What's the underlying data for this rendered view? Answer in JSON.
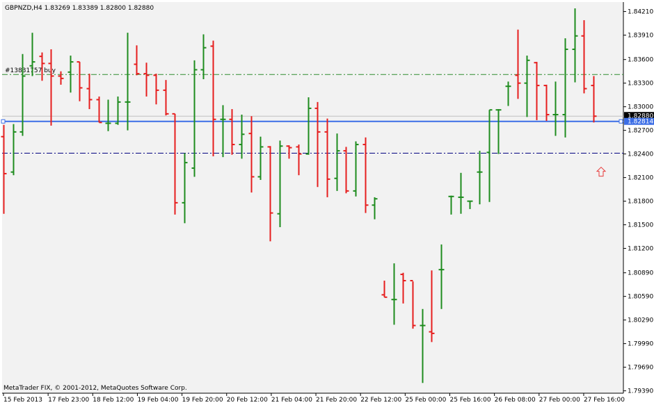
{
  "header": {
    "symbol_info": "GBPNZD,H4  1.83269 1.83389 1.82800 1.82880"
  },
  "footer": {
    "copyright": "MetaTrader FIX, © 2001-2012, MetaQuotes Software Corp."
  },
  "colors": {
    "background": "#f2f2f2",
    "bull": "#1e8c1e",
    "bear": "#e61e1e",
    "current_price_line": "#c0c0c0",
    "blue_line": "#3c6ee6",
    "green_dash": "#2e8b2e",
    "navy_dash": "#000080",
    "arrow": "#e83c3c"
  },
  "chart_data": {
    "type": "ohlc",
    "title": "GBPNZD,H4",
    "ohlc_header": {
      "open": 1.83269,
      "high": 1.83389,
      "low": 1.828,
      "close": 1.8288
    },
    "y_ticks": [
      "1.84210",
      "1.83910",
      "1.83600",
      "1.83300",
      "1.83000",
      "1.82700",
      "1.82400",
      "1.82100",
      "1.81800",
      "1.81500",
      "1.81200",
      "1.80890",
      "1.80590",
      "1.80290",
      "1.79990",
      "1.79690",
      "1.79390"
    ],
    "x_ticks": [
      "15 Feb 2013",
      "17 Feb 23:00",
      "18 Feb 12:00",
      "19 Feb 04:00",
      "19 Feb 20:00",
      "20 Feb 12:00",
      "21 Feb 04:00",
      "21 Feb 20:00",
      "22 Feb 12:00",
      "25 Feb 00:00",
      "25 Feb 16:00",
      "26 Feb 08:00",
      "27 Feb 00:00",
      "27 Feb 16:00"
    ],
    "ylim": [
      1.7936,
      1.8433
    ],
    "current_price": {
      "value": 1.8288,
      "label": "1.82880"
    },
    "blue_line": {
      "value": 1.82814,
      "label": "1.82814"
    },
    "order_line": {
      "value": 1.8341,
      "label": "#13831757 buy"
    },
    "dashdot_line": {
      "value": 1.8241
    },
    "arrow_bar_index": 63,
    "arrow_price": 1.8217,
    "bars": [
      {
        "o": 1.8262,
        "h": 1.8277,
        "l": 1.8164,
        "c": 1.8215
      },
      {
        "o": 1.8217,
        "h": 1.8278,
        "l": 1.8213,
        "c": 1.8268
      },
      {
        "o": 1.8268,
        "h": 1.8367,
        "l": 1.8263,
        "c": 1.8339
      },
      {
        "o": 1.8352,
        "h": 1.8394,
        "l": 1.8339,
        "c": 1.8357
      },
      {
        "o": 1.8364,
        "h": 1.8369,
        "l": 1.8333,
        "c": 1.8355
      },
      {
        "o": 1.8355,
        "h": 1.8373,
        "l": 1.8276,
        "c": 1.8339
      },
      {
        "o": 1.8339,
        "h": 1.8345,
        "l": 1.8328,
        "c": 1.8336
      },
      {
        "o": 1.8344,
        "h": 1.8365,
        "l": 1.8318,
        "c": 1.8357
      },
      {
        "o": 1.8357,
        "h": 1.8357,
        "l": 1.8307,
        "c": 1.8324
      },
      {
        "o": 1.8323,
        "h": 1.8342,
        "l": 1.8297,
        "c": 1.8309
      },
      {
        "o": 1.8309,
        "h": 1.8313,
        "l": 1.828,
        "c": 1.828
      },
      {
        "o": 1.8279,
        "h": 1.8309,
        "l": 1.8269,
        "c": 1.8279
      },
      {
        "o": 1.8279,
        "h": 1.8313,
        "l": 1.8277,
        "c": 1.8306
      },
      {
        "o": 1.8306,
        "h": 1.8394,
        "l": 1.827,
        "c": 1.8306
      },
      {
        "o": 1.8354,
        "h": 1.8378,
        "l": 1.834,
        "c": 1.8342
      },
      {
        "o": 1.8342,
        "h": 1.8356,
        "l": 1.8313,
        "c": 1.834
      },
      {
        "o": 1.834,
        "h": 1.8342,
        "l": 1.8303,
        "c": 1.8321
      },
      {
        "o": 1.8321,
        "h": 1.8334,
        "l": 1.8289,
        "c": 1.8291
      },
      {
        "o": 1.8291,
        "h": 1.8291,
        "l": 1.8163,
        "c": 1.8178
      },
      {
        "o": 1.8178,
        "h": 1.8241,
        "l": 1.8152,
        "c": 1.8229
      },
      {
        "o": 1.8222,
        "h": 1.8359,
        "l": 1.8211,
        "c": 1.8347
      },
      {
        "o": 1.8347,
        "h": 1.8392,
        "l": 1.8335,
        "c": 1.8375
      },
      {
        "o": 1.8377,
        "h": 1.8384,
        "l": 1.8237,
        "c": 1.8284
      },
      {
        "o": 1.8284,
        "h": 1.8302,
        "l": 1.8236,
        "c": 1.8284
      },
      {
        "o": 1.8284,
        "h": 1.8297,
        "l": 1.8239,
        "c": 1.8252
      },
      {
        "o": 1.8252,
        "h": 1.829,
        "l": 1.8234,
        "c": 1.8265
      },
      {
        "o": 1.8266,
        "h": 1.8288,
        "l": 1.8191,
        "c": 1.8211
      },
      {
        "o": 1.8211,
        "h": 1.8262,
        "l": 1.8207,
        "c": 1.8249
      },
      {
        "o": 1.8249,
        "h": 1.825,
        "l": 1.8129,
        "c": 1.8165
      },
      {
        "o": 1.8164,
        "h": 1.8257,
        "l": 1.8147,
        "c": 1.825
      },
      {
        "o": 1.825,
        "h": 1.8251,
        "l": 1.8234,
        "c": 1.8248
      },
      {
        "o": 1.8249,
        "h": 1.8252,
        "l": 1.8213,
        "c": 1.824
      },
      {
        "o": 1.824,
        "h": 1.8312,
        "l": 1.8239,
        "c": 1.8298
      },
      {
        "o": 1.8298,
        "h": 1.8306,
        "l": 1.8198,
        "c": 1.8268
      },
      {
        "o": 1.8268,
        "h": 1.8285,
        "l": 1.8185,
        "c": 1.8208
      },
      {
        "o": 1.8209,
        "h": 1.8266,
        "l": 1.8193,
        "c": 1.8244
      },
      {
        "o": 1.8244,
        "h": 1.8249,
        "l": 1.819,
        "c": 1.8193
      },
      {
        "o": 1.8193,
        "h": 1.8256,
        "l": 1.8186,
        "c": 1.8252
      },
      {
        "o": 1.8252,
        "h": 1.8261,
        "l": 1.8165,
        "c": 1.8175
      },
      {
        "o": 1.8175,
        "h": 1.8185,
        "l": 1.8157,
        "c": 1.8183
      },
      {
        "o": 1.8061,
        "h": 1.8079,
        "l": 1.8058,
        "c": 1.8058
      },
      {
        "o": 1.8055,
        "h": 1.8101,
        "l": 1.8023,
        "c": 1.8055
      },
      {
        "o": 1.8087,
        "h": 1.8089,
        "l": 1.805,
        "c": 1.8079
      },
      {
        "o": 1.8079,
        "h": 1.8078,
        "l": 1.8018,
        "c": 1.8022
      },
      {
        "o": 1.8022,
        "h": 1.8043,
        "l": 1.7949,
        "c": 1.8022
      },
      {
        "o": 1.8014,
        "h": 1.8092,
        "l": 1.8001,
        "c": 1.8012
      },
      {
        "o": 1.8093,
        "h": 1.8125,
        "l": 1.8043,
        "c": 1.8093
      },
      {
        "o": 1.8186,
        "h": 1.8187,
        "l": 1.8163,
        "c": 1.8186
      },
      {
        "o": 1.8185,
        "h": 1.8216,
        "l": 1.8164,
        "c": 1.8185
      },
      {
        "o": 1.818,
        "h": 1.818,
        "l": 1.817,
        "c": 1.818
      },
      {
        "o": 1.8217,
        "h": 1.8244,
        "l": 1.8176,
        "c": 1.8217
      },
      {
        "o": 1.8242,
        "h": 1.8296,
        "l": 1.8179,
        "c": 1.8296
      },
      {
        "o": 1.8296,
        "h": 1.8297,
        "l": 1.824,
        "c": 1.8296
      },
      {
        "o": 1.8326,
        "h": 1.8332,
        "l": 1.8301,
        "c": 1.8326
      },
      {
        "o": 1.834,
        "h": 1.8398,
        "l": 1.831,
        "c": 1.833
      },
      {
        "o": 1.833,
        "h": 1.8365,
        "l": 1.8287,
        "c": 1.8359
      },
      {
        "o": 1.8356,
        "h": 1.8357,
        "l": 1.8283,
        "c": 1.8327
      },
      {
        "o": 1.8327,
        "h": 1.8328,
        "l": 1.8282,
        "c": 1.829
      },
      {
        "o": 1.829,
        "h": 1.8332,
        "l": 1.8263,
        "c": 1.829
      },
      {
        "o": 1.829,
        "h": 1.8387,
        "l": 1.8261,
        "c": 1.8373
      },
      {
        "o": 1.8373,
        "h": 1.8425,
        "l": 1.8331,
        "c": 1.839
      },
      {
        "o": 1.839,
        "h": 1.841,
        "l": 1.8317,
        "c": 1.8323
      },
      {
        "o": 1.8327,
        "h": 1.8339,
        "l": 1.828,
        "c": 1.8288
      }
    ]
  }
}
